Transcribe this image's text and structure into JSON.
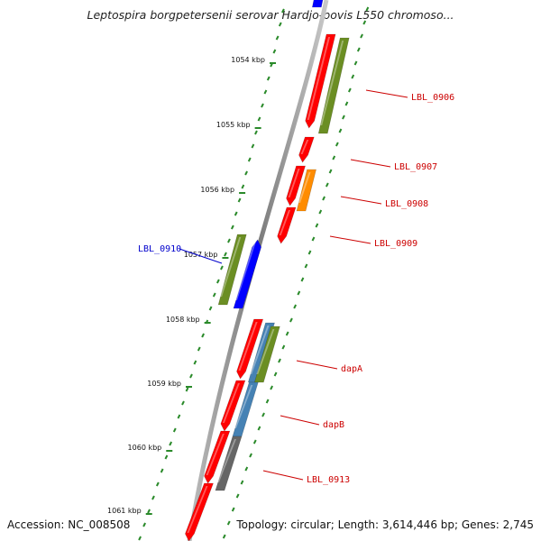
{
  "title": "Leptospira borgpetersenii serovar Hardjo-bovis L550 chromoso...",
  "footer": {
    "accession": "Accession: NC_008508",
    "summary": "Topology: circular; Length: 3,614,446 bp; Genes: 2,745"
  },
  "colors": {
    "backbone": "#8a8a8a",
    "tick": "#2a8a2a",
    "forward_label": "#cc0000",
    "reverse_label": "#0000cc",
    "red": "#ff0000",
    "olive": "#6b8e23",
    "blue": "#0000ff",
    "orange": "#ff8c00",
    "steelblue": "#4682b4",
    "gray": "#666666"
  },
  "scale_labels": [
    {
      "kbp": 1054,
      "label": "1054 kbp"
    },
    {
      "kbp": 1055,
      "label": "1055 kbp"
    },
    {
      "kbp": 1056,
      "label": "1056 kbp"
    },
    {
      "kbp": 1057,
      "label": "1057 kbp"
    },
    {
      "kbp": 1058,
      "label": "1058 kbp"
    },
    {
      "kbp": 1059,
      "label": "1059 kbp"
    },
    {
      "kbp": 1060,
      "label": "1060 kbp"
    },
    {
      "kbp": 1061,
      "label": "1061 kbp"
    }
  ],
  "gene_labels": [
    {
      "name": "LBL_0906",
      "strand": "forward"
    },
    {
      "name": "LBL_0907",
      "strand": "forward"
    },
    {
      "name": "LBL_0908",
      "strand": "forward"
    },
    {
      "name": "LBL_0909",
      "strand": "forward"
    },
    {
      "name": "LBL_0910",
      "strand": "reverse"
    },
    {
      "name": "dapA",
      "strand": "forward"
    },
    {
      "name": "dapB",
      "strand": "forward"
    },
    {
      "name": "LBL_0913",
      "strand": "forward"
    }
  ]
}
